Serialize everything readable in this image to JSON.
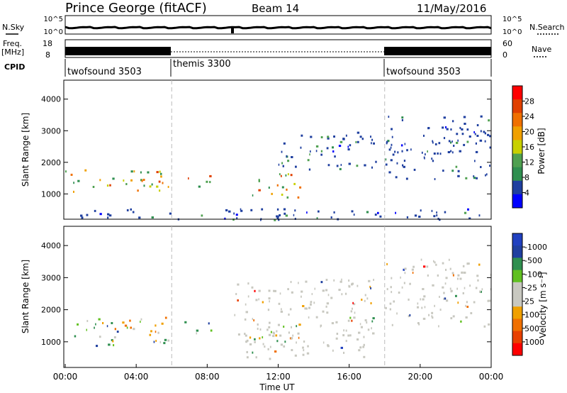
{
  "header": {
    "station": "Prince George (fitACF)",
    "beam": "Beam 14",
    "date": "11/May/2016"
  },
  "status_panels": {
    "nsky_label": "N.Sky",
    "nsearch_label": "N.Search",
    "noise_ticks": [
      "10^5",
      "10^0"
    ],
    "freq_label_1": "Freq.",
    "freq_label_2": "[MHz]",
    "freq_ticks": [
      "18",
      "8"
    ],
    "nave_label": "Nave",
    "nave_ticks": [
      "60",
      "0"
    ],
    "cpid_label": "CPID",
    "cpid_segments": [
      {
        "name": "twofsound 3503",
        "start_hr": 0,
        "end_hr": 6
      },
      {
        "name": "themis 3300",
        "start_hr": 6,
        "end_hr": 18
      },
      {
        "name": "twofsound 3503",
        "start_hr": 18,
        "end_hr": 24
      }
    ]
  },
  "colors": {
    "power_scale": [
      "#0000ff",
      "#1f3f9f",
      "#2f8f4f",
      "#4fa050",
      "#c8d000",
      "#f0a000",
      "#f07000",
      "#e04000",
      "#ff0000"
    ],
    "velocity_scale": [
      "#ff0000",
      "#e84000",
      "#f07000",
      "#f0a000",
      "#c8c8c0",
      "#c8c8c0",
      "#60c020",
      "#2f8f4f",
      "#1f3f9f",
      "#2040c0"
    ]
  },
  "chart_data": [
    {
      "type": "heatmap",
      "title": "",
      "xlabel": "Time UT",
      "ylabel": "Slant Range [km]",
      "xlim_hours": [
        0,
        24
      ],
      "ylim": [
        200,
        4600
      ],
      "x_tick_labels": [
        "00:00",
        "04:00",
        "08:00",
        "12:00",
        "16:00",
        "20:00",
        "00:00"
      ],
      "y_tick_labels": [
        "1000",
        "2000",
        "3000",
        "4000"
      ],
      "colorbar": {
        "label": "Power [dB]",
        "tick_labels": [
          "4",
          "8",
          "12",
          "16",
          "20",
          "24",
          "28"
        ]
      },
      "scatter_regions": [
        {
          "t0": 0.0,
          "t1": 5.8,
          "r0": 1100,
          "r1": 1800,
          "dominant": "green-orange"
        },
        {
          "t0": 6.7,
          "t1": 8.3,
          "r0": 1250,
          "r1": 1650,
          "dominant": "orange-red"
        },
        {
          "t0": 10.3,
          "t1": 13.2,
          "r0": 900,
          "r1": 1700,
          "dominant": "green-orange"
        },
        {
          "t0": 12.0,
          "t1": 17.5,
          "r0": 1800,
          "r1": 3000,
          "dominant": "blue"
        },
        {
          "t0": 18.0,
          "t1": 24.0,
          "r0": 1500,
          "r1": 3600,
          "dominant": "blue"
        },
        {
          "t0": 0.0,
          "t1": 24.0,
          "r0": 200,
          "r1": 550,
          "dominant": "blue"
        }
      ]
    },
    {
      "type": "heatmap",
      "title": "",
      "xlabel": "Time UT",
      "ylabel": "Slant Range [km]",
      "xlim_hours": [
        0,
        24
      ],
      "ylim": [
        200,
        4600
      ],
      "x_tick_labels": [
        "00:00",
        "04:00",
        "08:00",
        "12:00",
        "16:00",
        "20:00",
        "00:00"
      ],
      "y_tick_labels": [
        "1000",
        "2000",
        "3000",
        "4000"
      ],
      "colorbar": {
        "label": "Velocity [m s⁻¹]",
        "tick_labels": [
          "1000",
          "500",
          "100",
          "25",
          "-25",
          "-100",
          "-500",
          "-1000"
        ]
      },
      "scatter_regions": [
        {
          "t0": 0.5,
          "t1": 5.8,
          "r0": 900,
          "r1": 1800,
          "dominant": "orange-green"
        },
        {
          "t0": 6.7,
          "t1": 8.3,
          "r0": 1250,
          "r1": 1650,
          "dominant": "orange"
        },
        {
          "t0": 10.3,
          "t1": 13.2,
          "r0": 1000,
          "r1": 1700,
          "dominant": "orange"
        },
        {
          "t0": 9.5,
          "t1": 17.5,
          "r0": 500,
          "r1": 3000,
          "dominant": "gray"
        },
        {
          "t0": 18.0,
          "t1": 24.0,
          "r0": 1500,
          "r1": 3600,
          "dominant": "gray"
        }
      ]
    }
  ]
}
